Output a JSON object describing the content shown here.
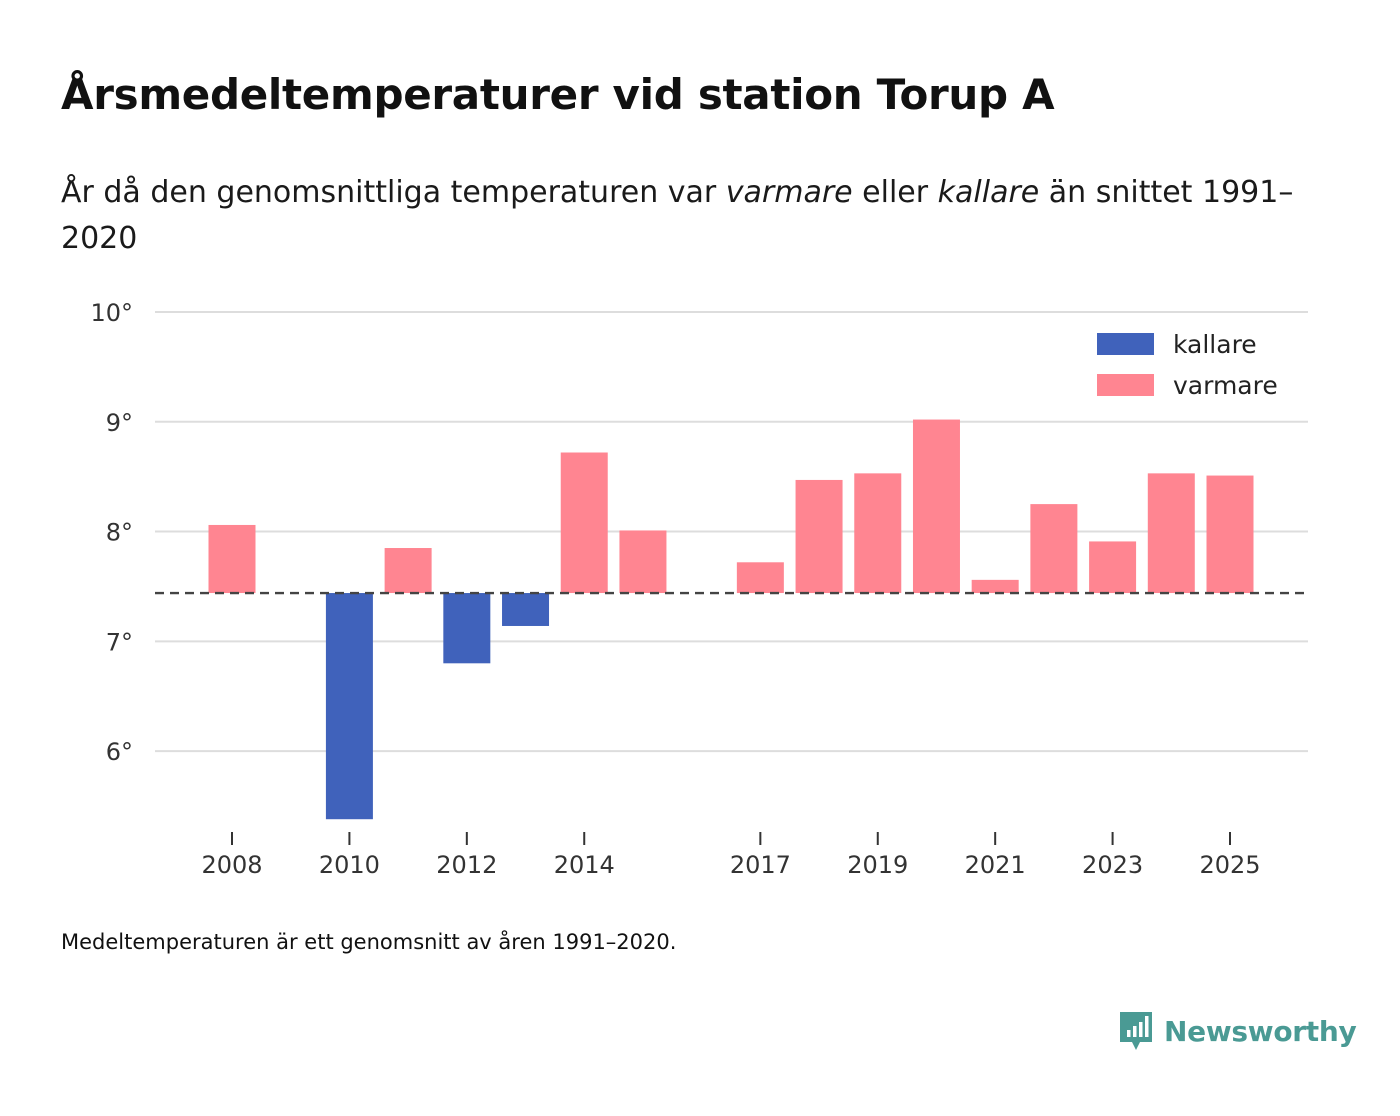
{
  "header": {
    "title": "Årsmedeltemperaturer vid station Torup A",
    "subtitle_pre": "År då den genomsnittliga temperaturen var ",
    "subtitle_warm": "varmare",
    "subtitle_mid": " eller ",
    "subtitle_cold": "kallare",
    "subtitle_post": " än snittet 1991–2020"
  },
  "footnote": "Medeltemperaturen är ett genomsnitt av åren 1991–2020.",
  "brand": {
    "name": "Newsworthy",
    "color": "#4a9a94"
  },
  "chart_data": {
    "type": "bar",
    "baseline": 7.44,
    "ylim": [
      5.3,
      10.2
    ],
    "yticks": [
      6,
      7,
      8,
      9,
      10
    ],
    "ytick_labels": [
      "6°",
      "7°",
      "8°",
      "9°",
      "10°"
    ],
    "xlim": [
      2007.3,
      2026.3
    ],
    "xticks": [
      2008,
      2010,
      2012,
      2014,
      2017,
      2019,
      2021,
      2023,
      2025
    ],
    "xtick_labels": [
      "2008",
      "2010",
      "2012",
      "2014",
      "2017",
      "2019",
      "2021",
      "2023",
      "2025"
    ],
    "colors": {
      "kallare": "#4062bb",
      "varmare": "#ff8591"
    },
    "legend": [
      {
        "key": "kallare",
        "label": "kallare"
      },
      {
        "key": "varmare",
        "label": "varmare"
      }
    ],
    "legend_position": "top-right",
    "series": [
      {
        "year": 2008,
        "value": 8.06
      },
      {
        "year": 2010,
        "value": 5.38
      },
      {
        "year": 2011,
        "value": 7.85
      },
      {
        "year": 2012,
        "value": 6.8
      },
      {
        "year": 2013,
        "value": 7.14
      },
      {
        "year": 2014,
        "value": 8.72
      },
      {
        "year": 2015,
        "value": 8.01
      },
      {
        "year": 2017,
        "value": 7.72
      },
      {
        "year": 2018,
        "value": 8.47
      },
      {
        "year": 2019,
        "value": 8.53
      },
      {
        "year": 2020,
        "value": 9.02
      },
      {
        "year": 2021,
        "value": 7.56
      },
      {
        "year": 2022,
        "value": 8.25
      },
      {
        "year": 2023,
        "value": 7.91
      },
      {
        "year": 2024,
        "value": 8.53
      },
      {
        "year": 2025,
        "value": 8.51
      }
    ]
  }
}
